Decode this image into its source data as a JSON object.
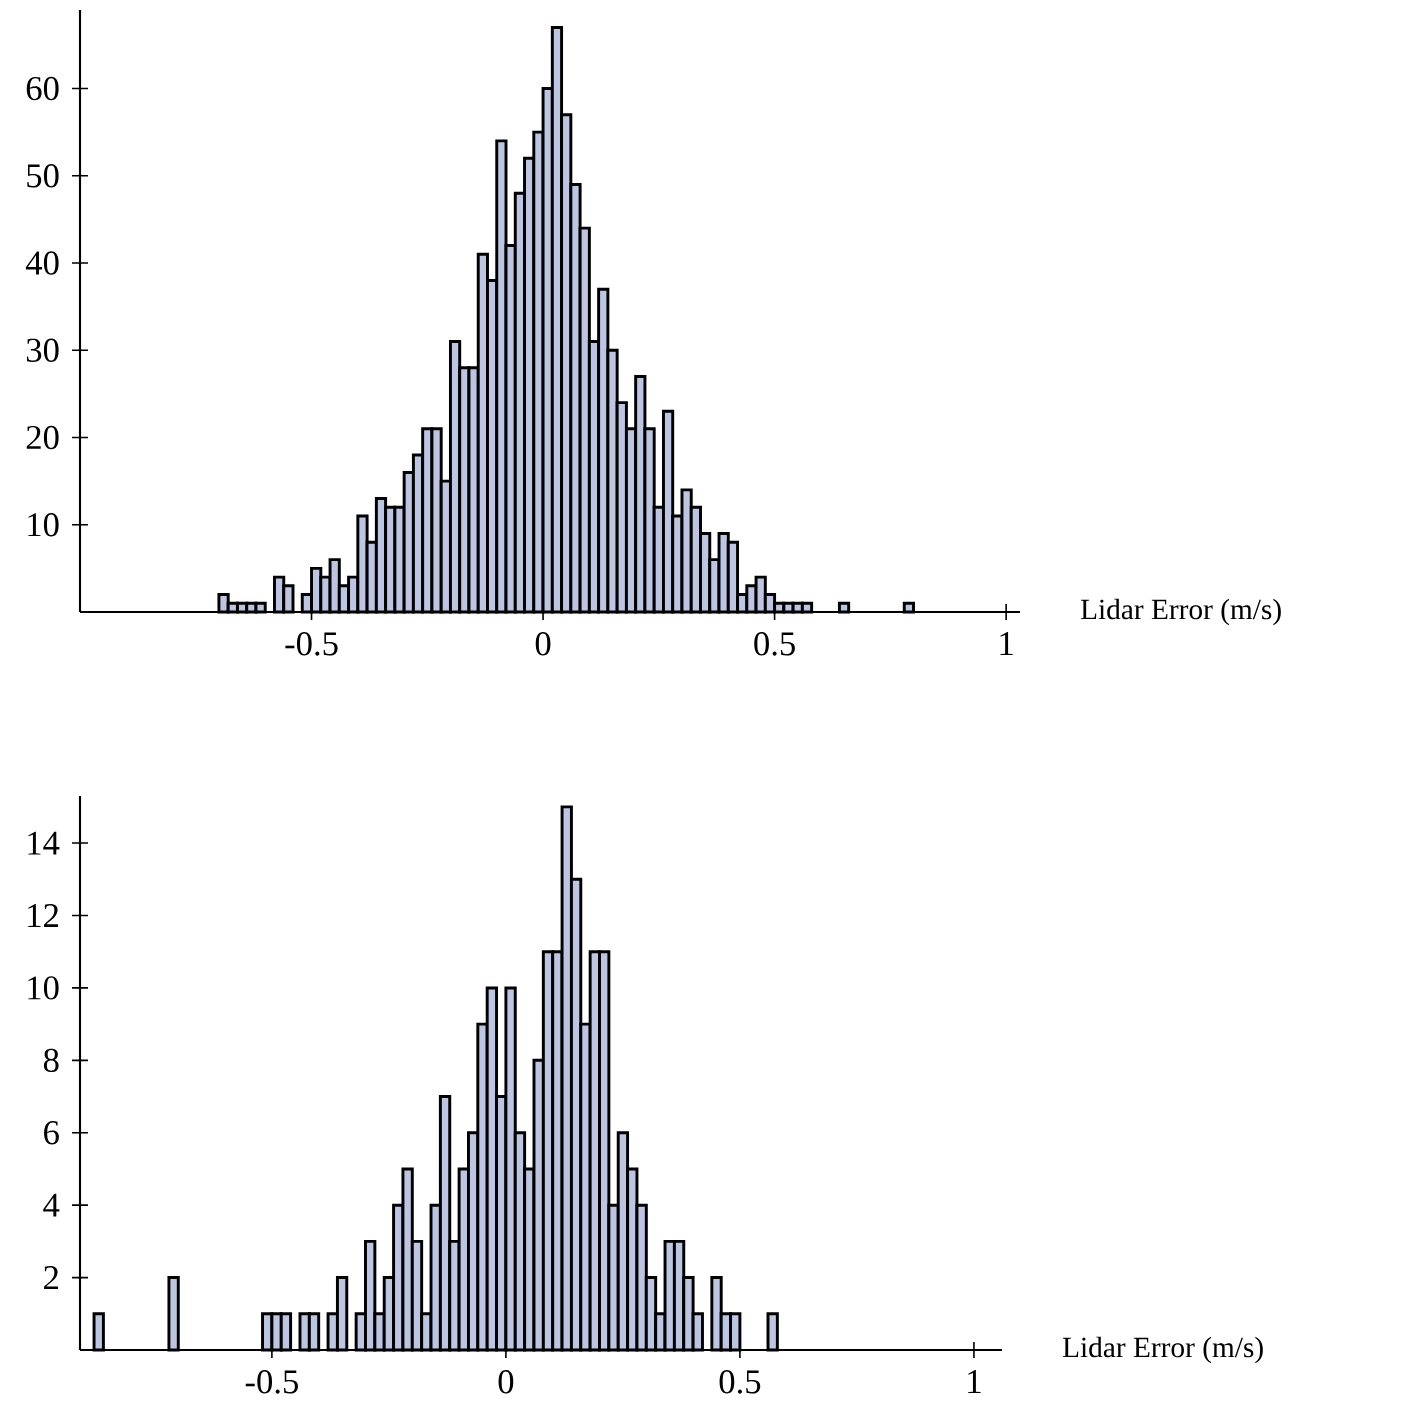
{
  "chart_data": [
    {
      "type": "histogram",
      "color": "#bcc6e2",
      "xlabel": "Lidar Error (m/s)",
      "xlim": [
        -1.0,
        1.03
      ],
      "ylim": [
        0,
        69
      ],
      "xticks": [
        -0.5,
        0,
        0.5,
        1
      ],
      "yticks": [
        10,
        20,
        30,
        40,
        50,
        60
      ],
      "bins": [
        -0.7,
        -0.68,
        -0.66,
        -0.64,
        -0.62,
        -0.6,
        -0.58,
        -0.56,
        -0.54,
        -0.52,
        -0.5,
        -0.48,
        -0.46,
        -0.44,
        -0.42,
        -0.4,
        -0.38,
        -0.36,
        -0.34,
        -0.32,
        -0.3,
        -0.28,
        -0.26,
        -0.24,
        -0.22,
        -0.2,
        -0.18,
        -0.16,
        -0.14,
        -0.12,
        -0.1,
        -0.08,
        -0.06,
        -0.04,
        -0.02,
        0,
        0.02,
        0.04,
        0.06,
        0.08,
        0.1,
        0.12,
        0.14,
        0.16,
        0.18,
        0.2,
        0.22,
        0.24,
        0.26,
        0.28,
        0.3,
        0.32,
        0.34,
        0.36,
        0.38,
        0.4,
        0.42,
        0.44,
        0.46,
        0.48,
        0.5,
        0.52,
        0.54,
        0.56,
        0.58,
        0.6,
        0.62,
        0.64,
        0.66,
        0.68,
        0.7,
        0.72,
        0.74,
        0.76,
        0.78,
        0.8
      ],
      "values": [
        2,
        1,
        1,
        1,
        1,
        0,
        4,
        3,
        0,
        2,
        5,
        4,
        6,
        3,
        4,
        11,
        8,
        13,
        12,
        12,
        16,
        18,
        21,
        21,
        15,
        31,
        28,
        28,
        41,
        38,
        54,
        42,
        48,
        52,
        55,
        60,
        67,
        57,
        49,
        44,
        31,
        37,
        30,
        24,
        21,
        27,
        21,
        12,
        23,
        11,
        14,
        12,
        9,
        6,
        9,
        8,
        2,
        3,
        4,
        2,
        1,
        1,
        1,
        1,
        0,
        0,
        0,
        1,
        0,
        0,
        0,
        0,
        0,
        0,
        1
      ]
    },
    {
      "type": "histogram",
      "color": "#bcc6e2",
      "xlabel": "Lidar Error (m/s)",
      "xlim": [
        -0.91,
        1.06
      ],
      "ylim": [
        0,
        15.3
      ],
      "xticks": [
        -0.5,
        0,
        0.5,
        1
      ],
      "yticks": [
        2,
        4,
        6,
        8,
        10,
        12,
        14
      ],
      "bins": [
        -0.88,
        -0.86,
        -0.84,
        -0.82,
        -0.8,
        -0.78,
        -0.76,
        -0.74,
        -0.72,
        -0.7,
        -0.68,
        -0.66,
        -0.64,
        -0.62,
        -0.6,
        -0.58,
        -0.56,
        -0.54,
        -0.52,
        -0.5,
        -0.48,
        -0.46,
        -0.44,
        -0.42,
        -0.4,
        -0.38,
        -0.36,
        -0.34,
        -0.32,
        -0.3,
        -0.28,
        -0.26,
        -0.24,
        -0.22,
        -0.2,
        -0.18,
        -0.16,
        -0.14,
        -0.12,
        -0.1,
        -0.08,
        -0.06,
        -0.04,
        -0.02,
        0,
        0.02,
        0.04,
        0.06,
        0.08,
        0.1,
        0.12,
        0.14,
        0.16,
        0.18,
        0.2,
        0.22,
        0.24,
        0.26,
        0.28,
        0.3,
        0.32,
        0.34,
        0.36,
        0.38,
        0.4,
        0.42,
        0.44,
        0.46,
        0.48,
        0.5,
        0.52,
        0.54,
        0.56,
        0.58
      ],
      "values": [
        1,
        0,
        0,
        0,
        0,
        0,
        0,
        0,
        2,
        0,
        0,
        0,
        0,
        0,
        0,
        0,
        0,
        0,
        1,
        1,
        1,
        0,
        1,
        1,
        0,
        1,
        2,
        0,
        1,
        3,
        1,
        2,
        4,
        5,
        3,
        1,
        4,
        7,
        3,
        5,
        6,
        9,
        10,
        7,
        10,
        6,
        5,
        8,
        11,
        11,
        15,
        13,
        9,
        11,
        11,
        4,
        6,
        5,
        4,
        2,
        1,
        3,
        3,
        2,
        1,
        0,
        2,
        1,
        1,
        0,
        0,
        0,
        1
      ]
    }
  ]
}
